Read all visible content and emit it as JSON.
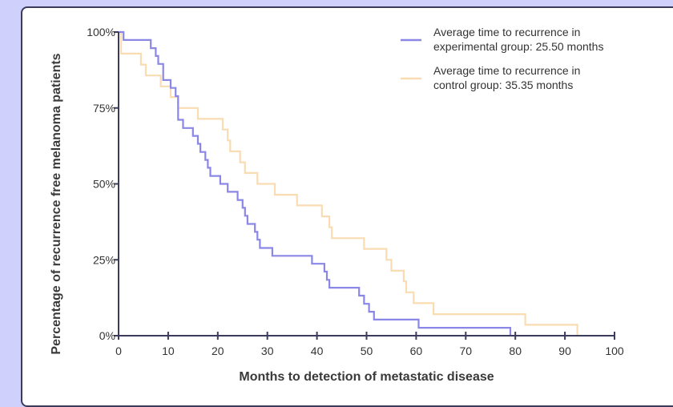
{
  "chart_data": {
    "type": "line",
    "xlabel": "Months to detection of metastatic disease",
    "ylabel": "Percentage of recurrence free melanoma patients",
    "xlim": [
      0,
      100
    ],
    "ylim": [
      0,
      100
    ],
    "x_ticks": [
      0,
      10,
      20,
      30,
      40,
      50,
      60,
      70,
      80,
      90,
      100
    ],
    "x_tick_labels": [
      "0",
      "10",
      "20",
      "30",
      "40",
      "50",
      "60",
      "70",
      "80",
      "90",
      "100"
    ],
    "y_ticks": [
      0,
      25,
      50,
      75,
      100
    ],
    "y_tick_labels": [
      "0%",
      "25%",
      "50%",
      "75%",
      "100%"
    ],
    "grid": false,
    "legend_position": "top-right",
    "series": [
      {
        "name": "Average time to recurrence in experimental group: 25.50 months",
        "legend_lines": [
          "Average time to recurrence in",
          "experimental group: 25.50 months"
        ],
        "color": "#8b87e6",
        "step": true,
        "points": [
          [
            0,
            100
          ],
          [
            1,
            100
          ],
          [
            1,
            97.4
          ],
          [
            6.5,
            97.4
          ],
          [
            6.5,
            94.7
          ],
          [
            7.5,
            94.7
          ],
          [
            7.5,
            92.1
          ],
          [
            8,
            92.1
          ],
          [
            8,
            89.5
          ],
          [
            9,
            89.5
          ],
          [
            9,
            84.2
          ],
          [
            10.5,
            84.2
          ],
          [
            10.5,
            81.6
          ],
          [
            11.5,
            81.6
          ],
          [
            11.5,
            78.9
          ],
          [
            12,
            78.9
          ],
          [
            12,
            71.1
          ],
          [
            13,
            71.1
          ],
          [
            13,
            68.4
          ],
          [
            15,
            68.4
          ],
          [
            15,
            65.8
          ],
          [
            16,
            65.8
          ],
          [
            16,
            63.2
          ],
          [
            16.5,
            63.2
          ],
          [
            16.5,
            60.5
          ],
          [
            17.5,
            60.5
          ],
          [
            17.5,
            57.9
          ],
          [
            18,
            57.9
          ],
          [
            18,
            55.3
          ],
          [
            18.5,
            55.3
          ],
          [
            18.5,
            52.6
          ],
          [
            20.5,
            52.6
          ],
          [
            20.5,
            50
          ],
          [
            22,
            50
          ],
          [
            22,
            47.4
          ],
          [
            24,
            47.4
          ],
          [
            24,
            44.7
          ],
          [
            25,
            44.7
          ],
          [
            25,
            42.1
          ],
          [
            25.5,
            42.1
          ],
          [
            25.5,
            39.5
          ],
          [
            26,
            39.5
          ],
          [
            26,
            36.8
          ],
          [
            27.5,
            36.8
          ],
          [
            27.5,
            34.2
          ],
          [
            28,
            34.2
          ],
          [
            28,
            31.6
          ],
          [
            28.5,
            31.6
          ],
          [
            28.5,
            28.9
          ],
          [
            31,
            28.9
          ],
          [
            31,
            26.3
          ],
          [
            39,
            26.3
          ],
          [
            39,
            23.7
          ],
          [
            41.5,
            23.7
          ],
          [
            41.5,
            21.1
          ],
          [
            42,
            21.1
          ],
          [
            42,
            18.4
          ],
          [
            42.5,
            18.4
          ],
          [
            42.5,
            15.8
          ],
          [
            48.5,
            15.8
          ],
          [
            48.5,
            13.2
          ],
          [
            49.5,
            13.2
          ],
          [
            49.5,
            10.5
          ],
          [
            50.5,
            10.5
          ],
          [
            50.5,
            7.9
          ],
          [
            51.5,
            7.9
          ],
          [
            51.5,
            5.3
          ],
          [
            60.5,
            5.3
          ],
          [
            60.5,
            2.6
          ],
          [
            79,
            2.6
          ],
          [
            79,
            0
          ]
        ]
      },
      {
        "name": "Average time to recurrence in control group: 35.35 months",
        "legend_lines": [
          "Average time to recurrence in",
          "control group: 35.35 months"
        ],
        "color": "#f9dcb2",
        "step": true,
        "points": [
          [
            0,
            100
          ],
          [
            0.5,
            100
          ],
          [
            0.5,
            92.9
          ],
          [
            4.5,
            92.9
          ],
          [
            4.5,
            89.3
          ],
          [
            5.5,
            89.3
          ],
          [
            5.5,
            85.7
          ],
          [
            8.5,
            85.7
          ],
          [
            8.5,
            82.1
          ],
          [
            10.5,
            82.1
          ],
          [
            10.5,
            78.6
          ],
          [
            12,
            78.6
          ],
          [
            12,
            75
          ],
          [
            16,
            75
          ],
          [
            16,
            71.4
          ],
          [
            21,
            71.4
          ],
          [
            21,
            67.9
          ],
          [
            22,
            67.9
          ],
          [
            22,
            64.3
          ],
          [
            22.5,
            64.3
          ],
          [
            22.5,
            60.7
          ],
          [
            24.5,
            60.7
          ],
          [
            24.5,
            57.1
          ],
          [
            25.5,
            57.1
          ],
          [
            25.5,
            53.6
          ],
          [
            28,
            53.6
          ],
          [
            28,
            50
          ],
          [
            31.5,
            50
          ],
          [
            31.5,
            46.4
          ],
          [
            36,
            46.4
          ],
          [
            36,
            42.9
          ],
          [
            41,
            42.9
          ],
          [
            41,
            39.3
          ],
          [
            42.5,
            39.3
          ],
          [
            42.5,
            35.7
          ],
          [
            43,
            35.7
          ],
          [
            43,
            32.1
          ],
          [
            49.5,
            32.1
          ],
          [
            49.5,
            28.6
          ],
          [
            54,
            28.6
          ],
          [
            54,
            25
          ],
          [
            55,
            25
          ],
          [
            55,
            21.4
          ],
          [
            57.5,
            21.4
          ],
          [
            57.5,
            17.9
          ],
          [
            58,
            17.9
          ],
          [
            58,
            14.3
          ],
          [
            59.5,
            14.3
          ],
          [
            59.5,
            10.7
          ],
          [
            63.5,
            10.7
          ],
          [
            63.5,
            7.1
          ],
          [
            82,
            7.1
          ],
          [
            82,
            3.6
          ],
          [
            92.5,
            3.6
          ],
          [
            92.5,
            0
          ]
        ]
      }
    ]
  }
}
